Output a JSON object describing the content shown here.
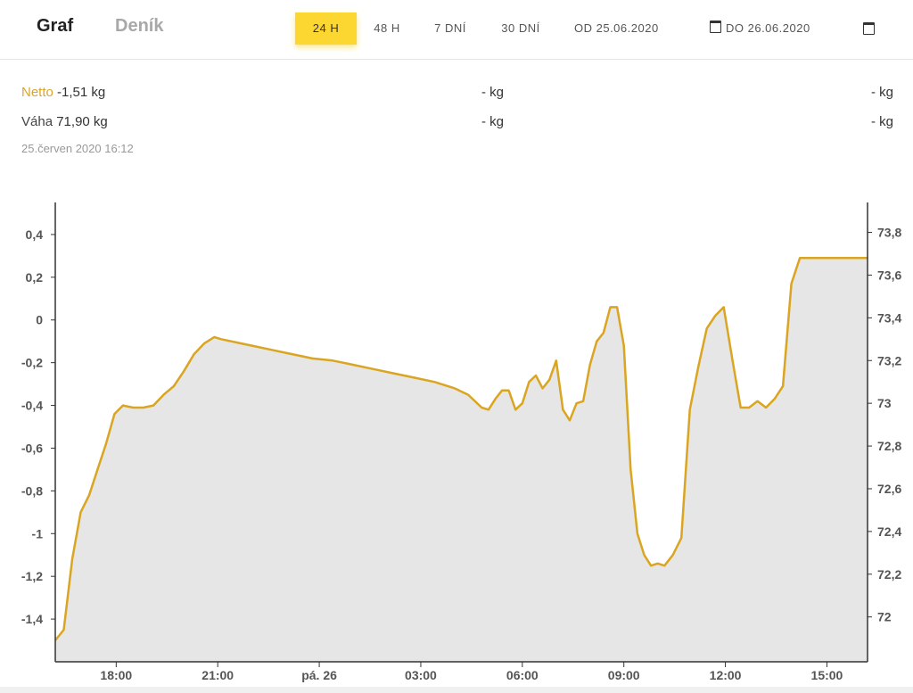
{
  "header": {
    "tabs": [
      {
        "label": "Graf",
        "active": true
      },
      {
        "label": "Deník",
        "active": false
      }
    ],
    "ranges": [
      {
        "label": "24 H",
        "active": true
      },
      {
        "label": "48 H",
        "active": false
      },
      {
        "label": "7 DNÍ",
        "active": false
      },
      {
        "label": "30 DNÍ",
        "active": false
      }
    ],
    "date_from": "OD 25.06.2020",
    "date_to": "DO 26.06.2020",
    "accent_color": "#fcd631"
  },
  "readout": {
    "netto_label": "Netto",
    "netto_value": "-1,51 kg",
    "vaha_label": "Váha",
    "vaha_value": "71,90 kg",
    "col2_netto": "- kg",
    "col2_vaha": "- kg",
    "col3_netto": "- kg",
    "col3_vaha": "- kg",
    "timestamp": "25.červen 2020 16:12"
  },
  "chart_data": {
    "type": "area",
    "line_color": "#daa520",
    "fill_color": "#e6e6e6",
    "x_range_hours": [
      16.2,
      40.2
    ],
    "x_ticks": [
      {
        "h": 18,
        "label": "18:00"
      },
      {
        "h": 21,
        "label": "21:00"
      },
      {
        "h": 24,
        "label": "pá. 26"
      },
      {
        "h": 27,
        "label": "03:00"
      },
      {
        "h": 30,
        "label": "06:00"
      },
      {
        "h": 33,
        "label": "09:00"
      },
      {
        "h": 36,
        "label": "12:00"
      },
      {
        "h": 39,
        "label": "15:00"
      }
    ],
    "y_left": {
      "min": -1.6,
      "max": 0.55,
      "ticks": [
        {
          "v": 0.4,
          "label": "0,4"
        },
        {
          "v": 0.2,
          "label": "0,2"
        },
        {
          "v": 0,
          "label": "0"
        },
        {
          "v": -0.2,
          "label": "-0,2"
        },
        {
          "v": -0.4,
          "label": "-0,4"
        },
        {
          "v": -0.6,
          "label": "-0,6"
        },
        {
          "v": -0.8,
          "label": "-0,8"
        },
        {
          "v": -1,
          "label": "-1"
        },
        {
          "v": -1.2,
          "label": "-1,2"
        },
        {
          "v": -1.4,
          "label": "-1,4"
        }
      ]
    },
    "y_right": {
      "min": 71.79,
      "max": 73.94,
      "ticks": [
        {
          "v": 73.8,
          "label": "73,8"
        },
        {
          "v": 73.6,
          "label": "73,6"
        },
        {
          "v": 73.4,
          "label": "73,4"
        },
        {
          "v": 73.2,
          "label": "73,2"
        },
        {
          "v": 73,
          "label": "73"
        },
        {
          "v": 72.8,
          "label": "72,8"
        },
        {
          "v": 72.6,
          "label": "72,6"
        },
        {
          "v": 72.4,
          "label": "72,4"
        },
        {
          "v": 72.2,
          "label": "72,2"
        },
        {
          "v": 72,
          "label": "72"
        }
      ]
    },
    "series": [
      {
        "axis": "left",
        "x": [
          16.2,
          16.45,
          16.7,
          16.95,
          17.2,
          17.45,
          17.7,
          17.95,
          18.2,
          18.5,
          18.8,
          19.1,
          19.4,
          19.7,
          20.0,
          20.3,
          20.6,
          20.9,
          21.1,
          21.4,
          21.7,
          22.0,
          22.6,
          23.2,
          23.8,
          24.4,
          25.0,
          25.6,
          26.2,
          26.8,
          27.4,
          28.0,
          28.4,
          28.8,
          29.0,
          29.2,
          29.4,
          29.6,
          29.8,
          30.0,
          30.2,
          30.4,
          30.6,
          30.8,
          31.0,
          31.2,
          31.4,
          31.6,
          31.8,
          32.0,
          32.2,
          32.4,
          32.6,
          32.8,
          33.0,
          33.2,
          33.4,
          33.6,
          33.8,
          34.0,
          34.2,
          34.45,
          34.7,
          34.95,
          35.2,
          35.45,
          35.7,
          35.95,
          36.2,
          36.45,
          36.7,
          36.95,
          37.2,
          37.45,
          37.7,
          37.95,
          38.2,
          38.45,
          38.7,
          38.95,
          39.2,
          39.45,
          39.7,
          39.95,
          40.2
        ],
        "values": [
          -1.5,
          -1.45,
          -1.12,
          -0.9,
          -0.82,
          -0.7,
          -0.58,
          -0.44,
          -0.4,
          -0.41,
          -0.41,
          -0.4,
          -0.35,
          -0.31,
          -0.24,
          -0.16,
          -0.11,
          -0.08,
          -0.09,
          -0.1,
          -0.11,
          -0.12,
          -0.14,
          -0.16,
          -0.18,
          -0.19,
          -0.21,
          -0.23,
          -0.25,
          -0.27,
          -0.29,
          -0.32,
          -0.35,
          -0.41,
          -0.42,
          -0.37,
          -0.33,
          -0.33,
          -0.42,
          -0.39,
          -0.29,
          -0.26,
          -0.32,
          -0.28,
          -0.19,
          -0.42,
          -0.47,
          -0.39,
          -0.38,
          -0.21,
          -0.1,
          -0.06,
          0.06,
          0.06,
          -0.12,
          -0.7,
          -1.0,
          -1.1,
          -1.15,
          -1.14,
          -1.15,
          -1.1,
          -1.02,
          -0.42,
          -0.22,
          -0.04,
          0.02,
          0.06,
          -0.18,
          -0.41,
          -0.41,
          -0.38,
          -0.41,
          -0.37,
          -0.31,
          0.17,
          0.29,
          0.29,
          0.29,
          0.29,
          0.29,
          0.29,
          0.29,
          0.29,
          0.29
        ]
      }
    ]
  }
}
